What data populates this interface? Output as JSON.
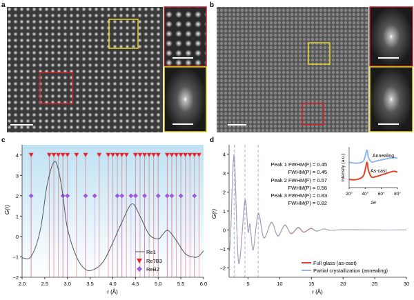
{
  "panels": {
    "a": "a",
    "b": "b",
    "c": "c",
    "d": "d"
  },
  "colors": {
    "re7b3": "#e8232a",
    "reb2": "#a259d9",
    "re1": "#555555",
    "full_glass": "#d9442a",
    "partial": "#8fb8e8",
    "inset_red": "#d2232a",
    "inset_yellow": "#e3d52a",
    "bg_gradient_top": "#bfe2f3"
  },
  "chart_data": [
    {
      "panel": "c",
      "type": "line",
      "xlabel": "r (Å)",
      "ylabel": "G(r)",
      "xlim": [
        2.0,
        6.0
      ],
      "ylim": [
        -2,
        4.5
      ],
      "xticks": [
        "2.0",
        "2.5",
        "3.0",
        "3.5",
        "4.0",
        "4.5",
        "5.0",
        "5.5",
        "6.0"
      ],
      "yticks": [
        "−2",
        "−1",
        "0",
        "1",
        "2",
        "3",
        "4"
      ],
      "legend_position": "bottom-right",
      "legend": [
        "Re1",
        "Re7B3",
        "ReB2"
      ],
      "series": [
        {
          "name": "Re1",
          "x": [
            2.0,
            2.2,
            2.4,
            2.55,
            2.7,
            2.8,
            2.9,
            3.0,
            3.2,
            3.4,
            3.6,
            3.8,
            4.0,
            4.2,
            4.42,
            4.6,
            4.8,
            5.0,
            5.1,
            5.22,
            5.4,
            5.6,
            5.8,
            5.9,
            6.0
          ],
          "y": [
            -1.05,
            -0.98,
            0.3,
            2.5,
            3.65,
            3.3,
            2.0,
            0.4,
            -1.0,
            -1.62,
            -1.6,
            -1.2,
            -0.3,
            0.7,
            1.6,
            1.0,
            0.1,
            -0.12,
            0.1,
            0.3,
            -0.2,
            -0.85,
            -1.02,
            -0.95,
            -0.7
          ]
        },
        {
          "name": "Re7B3",
          "y_marker": 4,
          "x": [
            2.2,
            2.6,
            2.7,
            2.8,
            2.9,
            3.0,
            3.2,
            3.4,
            3.7,
            3.9,
            4.0,
            4.1,
            4.2,
            4.3,
            4.5,
            4.6,
            4.7,
            4.8,
            4.9,
            5.0,
            5.2,
            5.3,
            5.4,
            5.5,
            5.6,
            5.7,
            5.8,
            5.9
          ]
        },
        {
          "name": "ReB2",
          "y_marker": 2,
          "x": [
            2.2,
            2.9,
            3.0,
            3.4,
            3.6,
            4.1,
            4.2,
            4.4,
            4.5,
            4.7,
            5.0,
            5.2,
            5.3,
            5.5,
            5.8
          ]
        }
      ]
    },
    {
      "panel": "d",
      "type": "line",
      "xlabel": "r (Å)",
      "ylabel": "G(r)",
      "xlim": [
        2,
        30
      ],
      "ylim": [
        -2.5,
        4.5
      ],
      "xticks": [
        "5",
        "10",
        "15",
        "20",
        "25",
        "30"
      ],
      "yticks": [
        "−2",
        "−1",
        "0",
        "1",
        "2",
        "3",
        "4"
      ],
      "dashed_lines_x": [
        2.8,
        4.5,
        6.6
      ],
      "legend_position": "bottom-right",
      "annotations": [
        "Peak 1 FWHM(F) = 0.45",
        "FWHM(P) = 0.45",
        "Peak 2 FWHM(F) = 0.57",
        "FWHM(P) = 0.56",
        "Peak 3 FWHM(F) = 0.83",
        "FWHM(P) = 0.82"
      ],
      "series": [
        {
          "name": "Full glass (as-cast)",
          "x": [
            2,
            2.2,
            2.8,
            3.5,
            4.5,
            5.0,
            5.3,
            5.8,
            6.6,
            7.5,
            8.7,
            9.7,
            10.8,
            11.8,
            12.9,
            13.8,
            14.9,
            15.8,
            17,
            18,
            20,
            25,
            30
          ],
          "y": [
            -1,
            -0.6,
            3.9,
            -1.75,
            1.5,
            -0.1,
            0.3,
            -1.05,
            0.85,
            -0.42,
            0.4,
            -0.32,
            0.25,
            -0.2,
            0.12,
            -0.12,
            0.08,
            -0.06,
            0.05,
            -0.02,
            0.01,
            0,
            0
          ]
        },
        {
          "name": "Partial crystallization (annealing)",
          "x": [
            2,
            2.2,
            2.8,
            3.5,
            4.5,
            5.0,
            5.3,
            5.8,
            6.6,
            7.5,
            8.7,
            9.7,
            10.8,
            11.8,
            12.9,
            13.8,
            14.9,
            15.8,
            17,
            18,
            20,
            25,
            30
          ],
          "y": [
            -1,
            -0.6,
            4.0,
            -1.75,
            1.6,
            -0.1,
            0.3,
            -1.05,
            0.9,
            -0.4,
            0.42,
            -0.3,
            0.27,
            -0.18,
            0.15,
            -0.1,
            0.1,
            -0.05,
            0.05,
            -0.02,
            0.01,
            0,
            0
          ]
        }
      ],
      "inset": {
        "type": "line",
        "xlabel": "2θ",
        "ylabel": "Intensity (a.u.)",
        "xticks": [
          "20°",
          "40°",
          "60°",
          "80°"
        ],
        "xlim": [
          20,
          80
        ],
        "labels": [
          "Annealing",
          "As-cast"
        ],
        "series": [
          {
            "name": "Annealing",
            "x": [
              20,
              30,
              38,
              42,
              44,
              48,
              55,
              65,
              75,
              80
            ],
            "y": [
              0.62,
              0.6,
              0.66,
              0.92,
              0.74,
              0.63,
              0.66,
              0.7,
              0.74,
              0.72
            ]
          },
          {
            "name": "As-cast",
            "x": [
              20,
              30,
              38,
              42,
              44,
              48,
              55,
              65,
              75,
              80
            ],
            "y": [
              0.2,
              0.2,
              0.3,
              0.62,
              0.42,
              0.26,
              0.28,
              0.34,
              0.4,
              0.38
            ]
          }
        ]
      }
    }
  ]
}
